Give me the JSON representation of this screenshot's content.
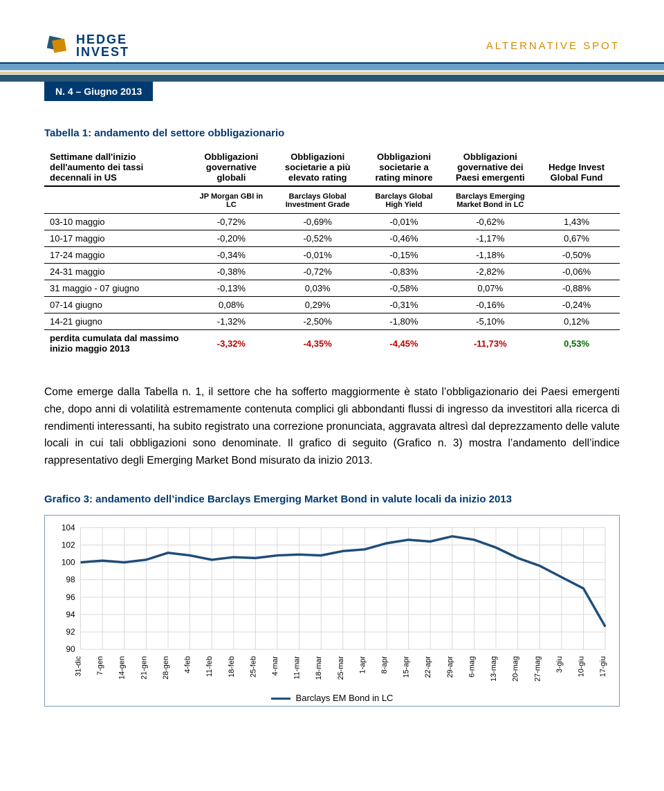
{
  "header": {
    "logo_top": "HEDGE",
    "logo_bottom": "INVEST",
    "tagline": "ALTERNATIVE SPOT",
    "issue": "N. 4 – Giugno 2013"
  },
  "table": {
    "title": "Tabella 1: andamento del settore obbligazionario",
    "rowhead_top": "Settimane dall'inizio dell'aumento dei tassi decennali in US",
    "col_headers_top": [
      "Obbligazioni governative globali",
      "Obbligazioni societarie a più elevato rating",
      "Obbligazioni societarie a rating minore",
      "Obbligazioni governative dei Paesi emergenti",
      "Hedge Invest Global Fund"
    ],
    "col_headers_sub": [
      "JP Morgan GBI in LC",
      "Barclays Global Investment Grade",
      "Barclays Global High Yield",
      "Barclays Emerging Market Bond in LC",
      ""
    ],
    "rows": [
      {
        "label": "03-10 maggio",
        "v": [
          "-0,72%",
          "-0,69%",
          "-0,01%",
          "-0,62%",
          "1,43%"
        ]
      },
      {
        "label": "10-17 maggio",
        "v": [
          "-0,20%",
          "-0,52%",
          "-0,46%",
          "-1,17%",
          "0,67%"
        ]
      },
      {
        "label": "17-24 maggio",
        "v": [
          "-0,34%",
          "-0,01%",
          "-0,15%",
          "-1,18%",
          "-0,50%"
        ]
      },
      {
        "label": "24-31 maggio",
        "v": [
          "-0,38%",
          "-0,72%",
          "-0,83%",
          "-2,82%",
          "-0,06%"
        ]
      },
      {
        "label": "31 maggio - 07 giugno",
        "v": [
          "-0,13%",
          "0,03%",
          "-0,58%",
          "0,07%",
          "-0,88%"
        ]
      },
      {
        "label": "07-14 giugno",
        "v": [
          "0,08%",
          "0,29%",
          "-0,31%",
          "-0,16%",
          "-0,24%"
        ]
      },
      {
        "label": "14-21 giugno",
        "v": [
          "-1,32%",
          "-2,50%",
          "-1,80%",
          "-5,10%",
          "0,12%"
        ]
      }
    ],
    "summary": {
      "label": "perdita cumulata dal massimo inizio maggio 2013",
      "v": [
        "-3,32%",
        "-4,35%",
        "-4,45%",
        "-11,73%",
        "0,53%"
      ]
    },
    "summary_colors": [
      "#b80000",
      "#b80000",
      "#b80000",
      "#b80000",
      "#006b00"
    ]
  },
  "paragraph": "Come emerge dalla Tabella n. 1, il settore che ha sofferto maggiormente è stato l’obbligazionario dei Paesi emergenti che, dopo anni di volatilità estremamente contenuta complici gli abbondanti flussi di ingresso da investitori alla ricerca di rendimenti interessanti, ha subito registrato una correzione pronunciata, aggravata altresì dal deprezzamento delle valute locali in cui tali obbligazioni sono denominate. Il grafico di seguito (Grafico n. 3) mostra l’andamento dell’indice rappresentativo degli Emerging Market Bond misurato da inizio 2013.",
  "chart": {
    "title": "Grafico 3: andamento dell’indice Barclays Emerging Market Bond in valute locali da inizio 2013",
    "type": "line",
    "legend_label": "Barclays EM Bond in LC",
    "ylim": [
      90,
      104
    ],
    "ytick_step": 2,
    "yticks": [
      "104",
      "102",
      "100",
      "98",
      "96",
      "94",
      "92",
      "90"
    ],
    "x_labels": [
      "31-dic",
      "7-gen",
      "14-gen",
      "21-gen",
      "28-gen",
      "4-feb",
      "11-feb",
      "18-feb",
      "25-feb",
      "4-mar",
      "11-mar",
      "18-mar",
      "25-mar",
      "1-apr",
      "8-apr",
      "15-apr",
      "22-apr",
      "29-apr",
      "6-mag",
      "13-mag",
      "20-mag",
      "27-mag",
      "3-giu",
      "10-giu",
      "17-giu"
    ],
    "values": [
      100.0,
      100.2,
      100.0,
      100.3,
      101.1,
      100.8,
      100.3,
      100.6,
      100.5,
      100.8,
      100.9,
      100.8,
      101.3,
      101.5,
      102.2,
      102.6,
      102.4,
      103.0,
      102.6,
      101.7,
      100.5,
      99.6,
      98.3,
      97.0,
      92.6
    ],
    "line_color": "#1f4e79",
    "line_width": 3.5,
    "background_color": "#ffffff",
    "grid_color": "#d9d9d9",
    "border_color": "#7a9db5",
    "axis_font_size": 12,
    "x_label_font_size": 11,
    "title_font_size": 15
  }
}
